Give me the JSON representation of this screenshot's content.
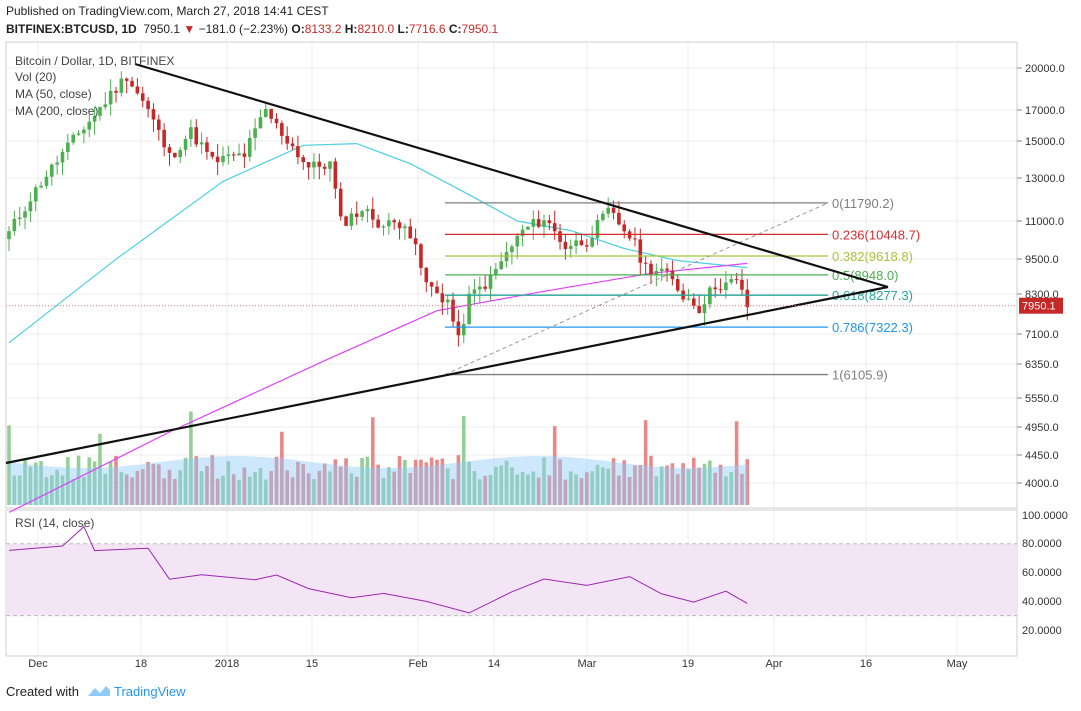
{
  "header": {
    "published": "Published on TradingView.com, March 27, 2018 14:41 CEST",
    "symbol": "BITFINEX:BTCUSD, 1D",
    "last": "7950.1",
    "change_arrow": "▼",
    "change": "−181.0 (−2.23%)",
    "o_label": "O:",
    "o": "8133.2",
    "h_label": "H:",
    "h": "8210.0",
    "l_label": "L:",
    "l": "7716.6",
    "c_label": "C:",
    "c": "7950.1"
  },
  "indicators": {
    "title": "Bitcoin / Dollar, 1D, BITFINEX",
    "vol": "Vol (20)",
    "ma50": "MA (50, close)",
    "ma200": "MA (200, close)",
    "rsi": "RSI (14, close)"
  },
  "price_axis": [
    "20000.0",
    "17000.0",
    "15000.0",
    "13000.0",
    "11000.0",
    "9500.0",
    "8300.0",
    "7100.0",
    "6350.0",
    "5550.0",
    "4950.0",
    "4450.0",
    "4000.0"
  ],
  "current_price_label": "7950.1",
  "rsi_axis": [
    "100.0000",
    "80.0000",
    "60.0000",
    "40.0000",
    "20.0000"
  ],
  "time_axis": [
    "Dec",
    "18",
    "2018",
    "15",
    "Feb",
    "14",
    "Mar",
    "19",
    "Apr",
    "16",
    "May"
  ],
  "fib_levels": [
    {
      "label": "0(11790.2)",
      "price": 11790.2,
      "color": "#7f7f7f"
    },
    {
      "label": "0.236(10448.7)",
      "price": 10448.7,
      "color": "#d32f2f"
    },
    {
      "label": "0.382(9618.8)",
      "price": 9618.8,
      "color": "#a4c639"
    },
    {
      "label": "0.5(8948.0)",
      "price": 8948.0,
      "color": "#4caf50"
    },
    {
      "label": "0.618(8277.3)",
      "price": 8277.3,
      "color": "#26a69a"
    },
    {
      "label": "0.786(7322.3)",
      "price": 7322.3,
      "color": "#2196f3"
    },
    {
      "label": "1(6105.9)",
      "price": 6105.9,
      "color": "#7f7f7f"
    }
  ],
  "colors": {
    "up": "#4caf50",
    "down": "#c62828",
    "ma50": "#4dd0e1",
    "ma200": "#e040fb",
    "vol_ma": "#90caf9",
    "rsi_line": "#9c27b0",
    "rsi_band": "#f3e5f5",
    "grid": "#eeeeee"
  },
  "footer": {
    "created_with": "Created with",
    "brand": "TradingView"
  }
}
